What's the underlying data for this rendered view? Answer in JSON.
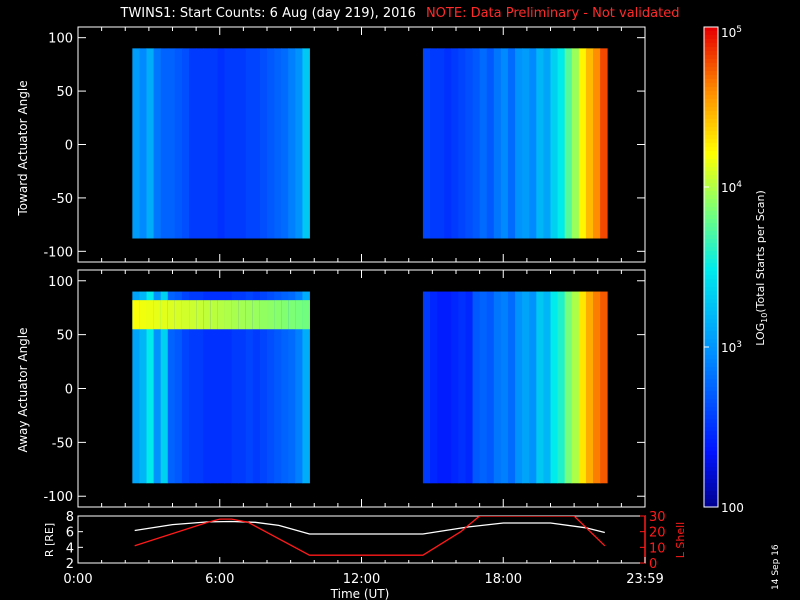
{
  "title": {
    "main": "TWINS1: Start Counts:  6 Aug (day 219), 2016",
    "note": "NOTE: Data Preliminary - Not validated"
  },
  "stamp": "14 Sep 16",
  "colors": {
    "background": "#000000",
    "axis": "#ffffff",
    "note": "#ff2a2a",
    "lshell": "#ff1a1a",
    "radius": "#ffffff"
  },
  "chart_data": [
    {
      "type": "heatmap",
      "name": "toward",
      "ylabel": "Toward Actuator Angle",
      "ylim": [
        -110,
        110
      ],
      "yticks": [
        100,
        50,
        0,
        -50,
        -100
      ],
      "xlim": [
        0,
        24
      ],
      "xticks": [
        "0:00",
        "6:00",
        "12:00",
        "18:00",
        "23:59"
      ],
      "time_hours": [
        2.3,
        2.6,
        2.9,
        3.2,
        3.5,
        3.8,
        4.1,
        4.4,
        4.7,
        5.0,
        5.3,
        5.6,
        5.9,
        6.2,
        6.5,
        6.8,
        7.1,
        7.4,
        7.7,
        8.0,
        8.3,
        8.6,
        8.9,
        9.2,
        9.5,
        14.6,
        14.9,
        15.2,
        15.5,
        15.8,
        16.1,
        16.4,
        16.7,
        17.0,
        17.3,
        17.6,
        17.9,
        18.2,
        18.5,
        18.8,
        19.1,
        19.4,
        19.7,
        20.0,
        20.3,
        20.6,
        20.9,
        21.2,
        21.5,
        21.8,
        22.1
      ],
      "log10_counts": [
        3.05,
        2.95,
        3.15,
        2.85,
        2.75,
        2.75,
        2.7,
        2.65,
        2.55,
        2.55,
        2.55,
        2.55,
        2.5,
        2.55,
        2.55,
        2.55,
        2.6,
        2.6,
        2.65,
        2.7,
        2.75,
        2.8,
        2.9,
        3.0,
        3.3,
        2.6,
        2.55,
        2.55,
        2.5,
        2.55,
        2.6,
        2.65,
        2.7,
        2.8,
        2.7,
        2.85,
        2.95,
        2.8,
        3.0,
        3.05,
        2.95,
        3.2,
        3.1,
        3.35,
        3.5,
        3.75,
        3.95,
        4.25,
        4.45,
        4.6,
        4.8
      ],
      "gaps_hours": [
        [
          0,
          2.3
        ],
        [
          9.8,
          14.6
        ],
        [
          22.4,
          24
        ]
      ],
      "data_yrange": [
        -88,
        90
      ],
      "data_yrange_note": "Toward Actuator Angle, degrees"
    },
    {
      "type": "heatmap",
      "name": "away",
      "ylabel": "Away Actuator Angle",
      "ylim": [
        -110,
        110
      ],
      "yticks": [
        100,
        50,
        0,
        -50,
        -100
      ],
      "xlim": [
        0,
        24
      ],
      "xticks": [
        "0:00",
        "6:00",
        "12:00",
        "18:00",
        "23:59"
      ],
      "time_hours": [
        2.3,
        2.6,
        2.9,
        3.2,
        3.5,
        3.8,
        4.1,
        4.4,
        4.7,
        5.0,
        5.3,
        5.6,
        5.9,
        6.2,
        6.5,
        6.8,
        7.1,
        7.4,
        7.7,
        8.0,
        8.3,
        8.6,
        8.9,
        9.2,
        9.5,
        14.6,
        14.9,
        15.2,
        15.5,
        15.8,
        16.1,
        16.4,
        16.7,
        17.0,
        17.3,
        17.6,
        17.9,
        18.2,
        18.5,
        18.8,
        19.1,
        19.4,
        19.7,
        20.0,
        20.3,
        20.6,
        20.9,
        21.2,
        21.5,
        21.8,
        22.1
      ],
      "log10_counts": [
        3.1,
        3.2,
        3.5,
        3.0,
        3.35,
        2.75,
        2.7,
        2.6,
        2.55,
        2.55,
        2.5,
        2.5,
        2.5,
        2.5,
        2.55,
        2.55,
        2.6,
        2.55,
        2.6,
        2.65,
        2.7,
        2.75,
        2.8,
        2.9,
        3.15,
        2.55,
        2.45,
        2.4,
        2.4,
        2.45,
        2.5,
        2.45,
        2.7,
        2.75,
        2.7,
        2.85,
        2.9,
        2.8,
        3.0,
        3.1,
        3.0,
        3.3,
        3.2,
        3.5,
        3.6,
        3.85,
        4.0,
        4.3,
        4.5,
        4.65,
        4.75
      ],
      "enhanced_band": {
        "angle_from": 55,
        "angle_to": 82,
        "time_from": 2.3,
        "time_to": 9.5,
        "log10_counts": 4.2
      },
      "gaps_hours": [
        [
          0,
          2.3
        ],
        [
          9.8,
          14.6
        ],
        [
          22.4,
          24
        ]
      ],
      "data_yrange": [
        -88,
        90
      ],
      "data_yrange_note": "Away Actuator Angle, degrees"
    },
    {
      "type": "line",
      "name": "orbit",
      "ylabel": "R [RE]",
      "ylim": [
        2,
        8
      ],
      "yticks": [
        2,
        4,
        6,
        8
      ],
      "y2label": "L Shell",
      "y2lim": [
        0,
        30
      ],
      "y2ticks": [
        0,
        10,
        20,
        30
      ],
      "xlabel": "Time (UT)",
      "xlim": [
        0,
        24
      ],
      "xticks": [
        "0:00",
        "6:00",
        "12:00",
        "18:00",
        "23:59"
      ],
      "series": [
        {
          "name": "R [RE]",
          "axis": "left",
          "x": [
            2.4,
            4.0,
            5.5,
            6.5,
            7.5,
            8.5,
            9.8,
            12.0,
            14.6,
            16.5,
            18.0,
            20.0,
            21.5,
            22.3
          ],
          "y": [
            6.15,
            6.9,
            7.25,
            7.3,
            7.2,
            6.8,
            5.7,
            5.7,
            5.7,
            6.6,
            7.1,
            7.1,
            6.5,
            5.9
          ]
        },
        {
          "name": "L Shell",
          "axis": "right",
          "x": [
            2.4,
            5.5,
            6.0,
            6.5,
            7.2,
            9.8,
            12.0,
            14.6,
            16.2,
            17.0,
            20.0,
            21.0,
            22.3
          ],
          "y": [
            11,
            26,
            28,
            28,
            26,
            5,
            5,
            5,
            20,
            30,
            30,
            30,
            11
          ]
        }
      ]
    }
  ],
  "colorbar": {
    "label": "LOG10(Total Starts per Scan)",
    "label_main": "LOG",
    "label_sub": "10",
    "label_rest": "(Total Starts per Scan)",
    "tick_labels": [
      "10",
      "10",
      "10",
      "100"
    ],
    "tick_exponents": [
      "5",
      "4",
      "3",
      ""
    ],
    "log10_ticks": [
      5,
      4,
      3,
      2
    ],
    "range_log10": [
      2,
      5
    ]
  }
}
